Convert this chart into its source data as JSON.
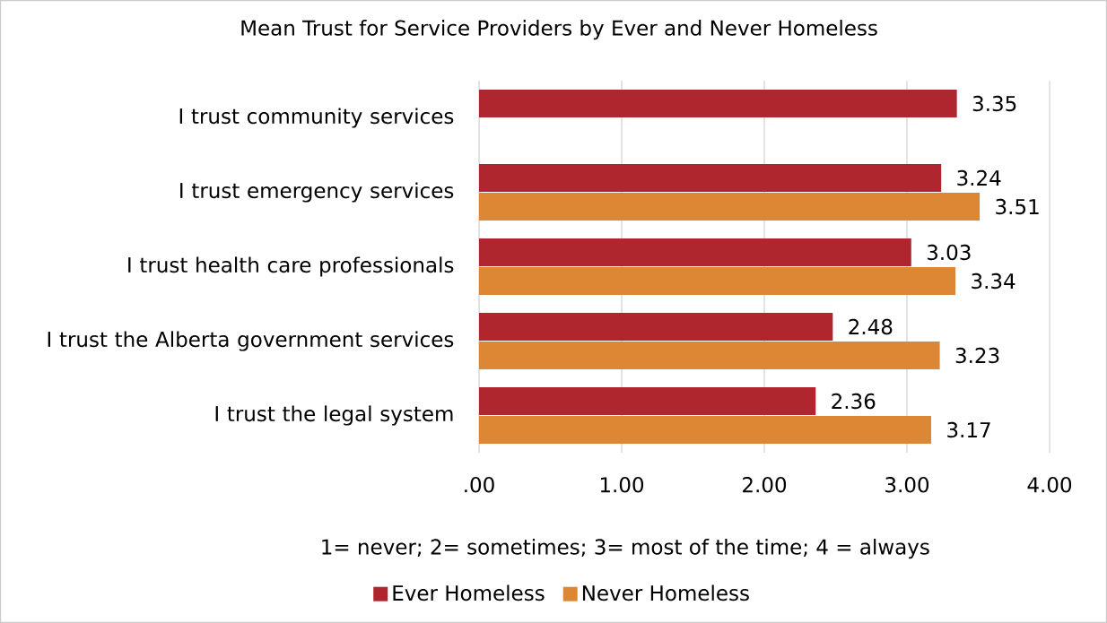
{
  "chart_data": {
    "type": "bar",
    "orientation": "horizontal",
    "title": "Mean Trust for Service Providers by Ever and Never Homeless",
    "xlabel": "1= never; 2= sometimes; 3= most of the time; 4 = always",
    "categories": [
      "I trust community services",
      "I trust emergency services",
      "I trust health care professionals",
      "I trust the Alberta government services",
      "I trust the legal system"
    ],
    "series": [
      {
        "name": "Ever Homeless",
        "color": "#b0262f",
        "values": [
          3.35,
          3.24,
          3.03,
          2.48,
          2.36
        ],
        "value_labels": [
          "3.35",
          "3.24",
          "3.03",
          "2.48",
          "2.36"
        ]
      },
      {
        "name": "Never Homeless",
        "color": "#dd8735",
        "values": [
          null,
          3.51,
          3.34,
          3.23,
          3.17
        ],
        "value_labels": [
          null,
          "3.51",
          "3.34",
          "3.23",
          "3.17"
        ]
      }
    ],
    "xlim": [
      0,
      4
    ],
    "xticks": [
      {
        "value": 0,
        "label": ".00"
      },
      {
        "value": 1,
        "label": "1.00"
      },
      {
        "value": 2,
        "label": "2.00"
      },
      {
        "value": 3,
        "label": "3.00"
      },
      {
        "value": 4,
        "label": "4.00"
      }
    ],
    "grid": "x",
    "legend": "bottom"
  }
}
